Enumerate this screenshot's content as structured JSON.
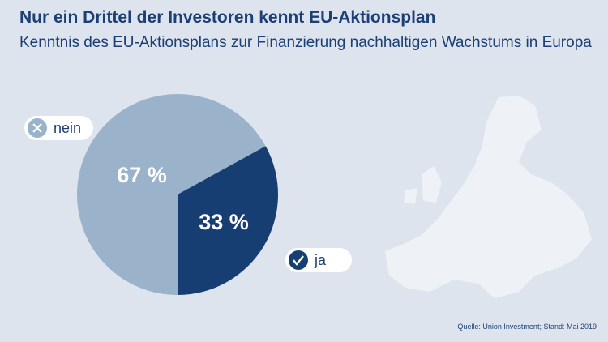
{
  "chart_data": {
    "type": "pie",
    "title": "Nur ein Drittel der Investoren kennt EU-Aktionsplan",
    "subtitle": "Kenntnis des EU-Aktionsplans zur Finanzierung nachhaltigen Wachstums in Europa",
    "categories": [
      "nein",
      "ja"
    ],
    "values": [
      67,
      33
    ],
    "value_labels": [
      "67 %",
      "33 %"
    ],
    "colors": [
      "#9ab3cb",
      "#173e72"
    ],
    "source": "Quelle: Union Investment; Stand: Mai 2019"
  }
}
